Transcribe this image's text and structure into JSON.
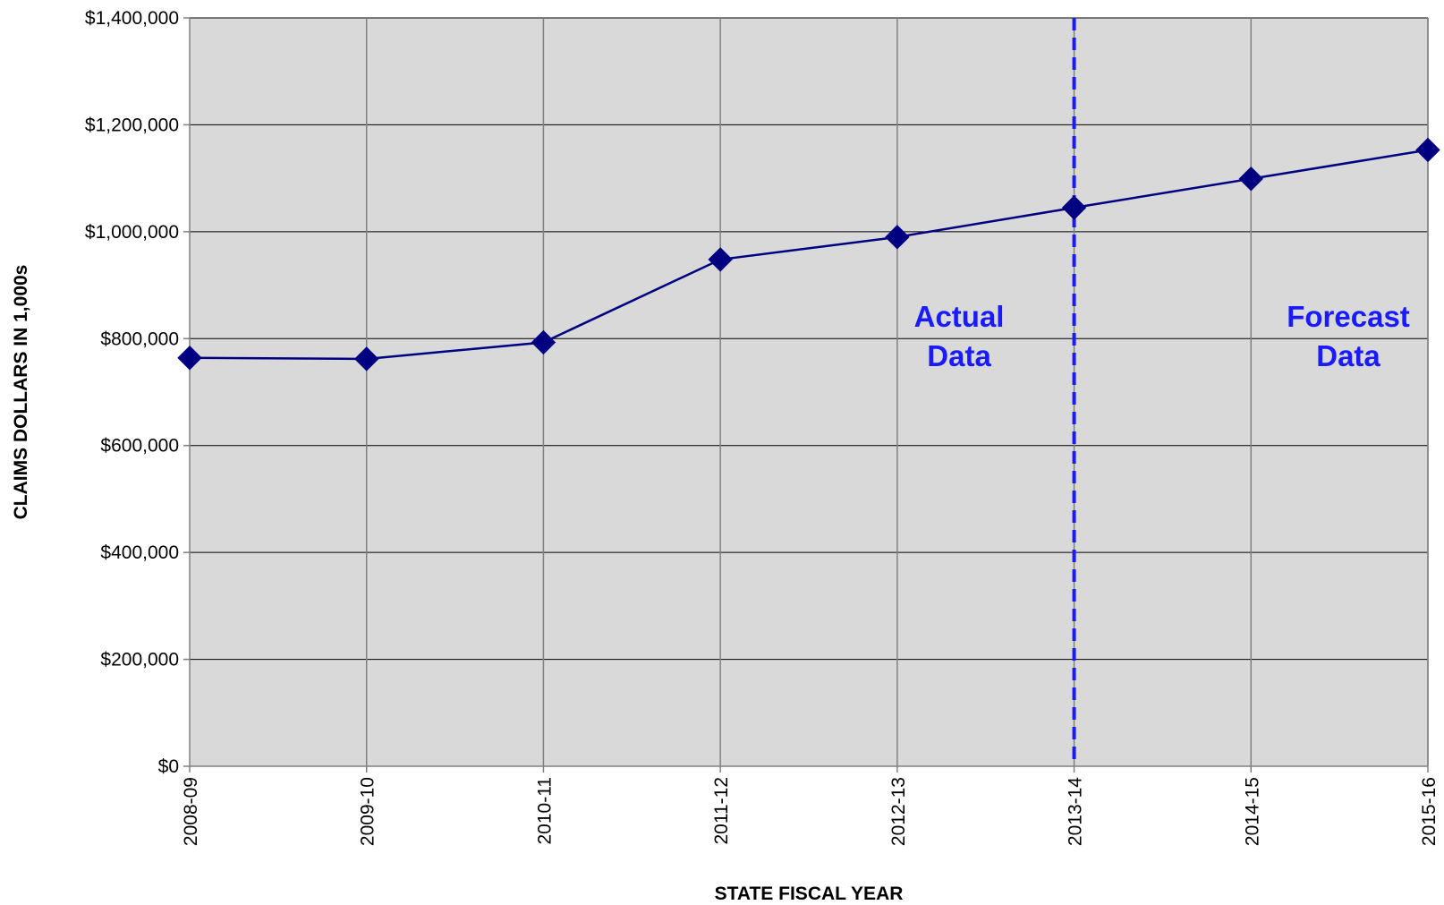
{
  "chart_data": {
    "type": "line",
    "title": "",
    "xlabel": "STATE FISCAL YEAR",
    "ylabel": "CLAIMS DOLLARS IN 1,000s",
    "categories": [
      "2008-09",
      "2009-10",
      "2010-11",
      "2011-12",
      "2012-13",
      "2013-14",
      "2014-15",
      "2015-16"
    ],
    "series": [
      {
        "values": [
          764000,
          762000,
          793000,
          948000,
          990000,
          1045000,
          1099000,
          1153000
        ]
      }
    ],
    "ylim": [
      0,
      1400000
    ],
    "y_ticks": [
      {
        "value": 0,
        "label": "$0"
      },
      {
        "value": 200000,
        "label": "$200,000"
      },
      {
        "value": 400000,
        "label": "$400,000"
      },
      {
        "value": 600000,
        "label": "$600,000"
      },
      {
        "value": 800000,
        "label": "$800,000"
      },
      {
        "value": 1000000,
        "label": "$1,000,000"
      },
      {
        "value": 1200000,
        "label": "$1,200,000"
      },
      {
        "value": 1400000,
        "label": "$1,400,000"
      }
    ],
    "grid": true,
    "legend": "none",
    "divider_at_category": "2013-14",
    "annotations": [
      {
        "lines": [
          "Actual",
          "Data"
        ],
        "side": "left-of-divider"
      },
      {
        "lines": [
          "Forecast",
          "Data"
        ],
        "side": "right-of-divider"
      }
    ],
    "colors": {
      "series": "#000080",
      "plot_background": "#d9d9d9",
      "gridline": "#808080",
      "divider": "#1a1aff",
      "annotation": "#1a1aff"
    }
  }
}
